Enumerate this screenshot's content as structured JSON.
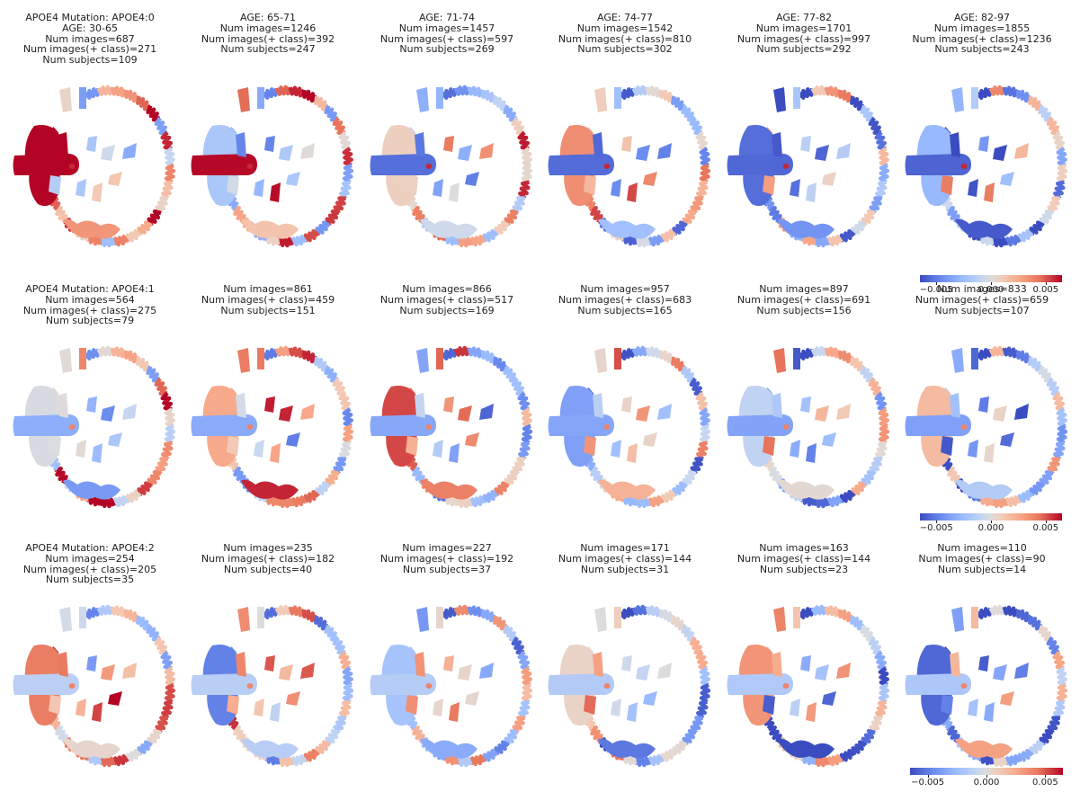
{
  "chart_data": {
    "type": "heatmap",
    "description_scale": "diverging colormap (coolwarm)",
    "colorbar": {
      "ticks": [
        -0.005,
        0.0,
        0.005
      ],
      "tick_labels": [
        "−0.005",
        "0.000",
        "0.005"
      ],
      "range": [
        -0.0065,
        0.0065
      ]
    },
    "rows": [
      {
        "mutation": "APOE4 Mutation: APOE4:0",
        "panels": [
          {
            "lines": [
              "APOE4 Mutation: APOE4:0",
              "AGE: 30-65",
              "Num images=687",
              "Num images(+ class)=271",
              "Num subjects=109"
            ],
            "age_range": "30-65",
            "num_images": 687,
            "num_images_pos": 271,
            "num_subjects": 109
          },
          {
            "lines": [
              "AGE: 65-71",
              "Num images=1246",
              "Num images(+ class)=392",
              "Num subjects=247"
            ],
            "age_range": "65-71",
            "num_images": 1246,
            "num_images_pos": 392,
            "num_subjects": 247
          },
          {
            "lines": [
              "AGE: 71-74",
              "Num images=1457",
              "Num images(+ class)=597",
              "Num subjects=269"
            ],
            "age_range": "71-74",
            "num_images": 1457,
            "num_images_pos": 597,
            "num_subjects": 269
          },
          {
            "lines": [
              "AGE: 74-77",
              "Num images=1542",
              "Num images(+ class)=810",
              "Num subjects=302"
            ],
            "age_range": "74-77",
            "num_images": 1542,
            "num_images_pos": 810,
            "num_subjects": 302
          },
          {
            "lines": [
              "AGE: 77-82",
              "Num images=1701",
              "Num images(+ class)=997",
              "Num subjects=292"
            ],
            "age_range": "77-82",
            "num_images": 1701,
            "num_images_pos": 997,
            "num_subjects": 292
          },
          {
            "lines": [
              "AGE: 82-97",
              "Num images=1855",
              "Num images(+ class)=1236",
              "Num subjects=243"
            ],
            "age_range": "82-97",
            "num_images": 1855,
            "num_images_pos": 1236,
            "num_subjects": 243
          }
        ]
      },
      {
        "mutation": "APOE4 Mutation: APOE4:1",
        "panels": [
          {
            "lines": [
              "APOE4 Mutation: APOE4:1",
              "Num images=564",
              "Num images(+ class)=275",
              "Num subjects=79"
            ],
            "num_images": 564,
            "num_images_pos": 275,
            "num_subjects": 79
          },
          {
            "lines": [
              "Num images=861",
              "Num images(+ class)=459",
              "Num subjects=151"
            ],
            "num_images": 861,
            "num_images_pos": 459,
            "num_subjects": 151
          },
          {
            "lines": [
              "Num images=866",
              "Num images(+ class)=517",
              "Num subjects=169"
            ],
            "num_images": 866,
            "num_images_pos": 517,
            "num_subjects": 169
          },
          {
            "lines": [
              "Num images=957",
              "Num images(+ class)=683",
              "Num subjects=165"
            ],
            "num_images": 957,
            "num_images_pos": 683,
            "num_subjects": 165
          },
          {
            "lines": [
              "Num images=897",
              "Num images(+ class)=691",
              "Num subjects=156"
            ],
            "num_images": 897,
            "num_images_pos": 691,
            "num_subjects": 156
          },
          {
            "lines": [
              "Num images=833",
              "Num images(+ class)=659",
              "Num subjects=107"
            ],
            "num_images": 833,
            "num_images_pos": 659,
            "num_subjects": 107
          }
        ]
      },
      {
        "mutation": "APOE4 Mutation: APOE4:2",
        "panels": [
          {
            "lines": [
              "APOE4 Mutation: APOE4:2",
              "Num images=254",
              "Num images(+ class)=205",
              "Num subjects=35"
            ],
            "num_images": 254,
            "num_images_pos": 205,
            "num_subjects": 35
          },
          {
            "lines": [
              "Num images=235",
              "Num images(+ class)=182",
              "Num subjects=40"
            ],
            "num_images": 235,
            "num_images_pos": 182,
            "num_subjects": 40
          },
          {
            "lines": [
              "Num images=227",
              "Num images(+ class)=192",
              "Num subjects=37"
            ],
            "num_images": 227,
            "num_images_pos": 192,
            "num_subjects": 37
          },
          {
            "lines": [
              "Num images=171",
              "Num images(+ class)=144",
              "Num subjects=31"
            ],
            "num_images": 171,
            "num_images_pos": 144,
            "num_subjects": 31
          },
          {
            "lines": [
              "Num images=163",
              "Num images(+ class)=144",
              "Num subjects=23"
            ],
            "num_images": 163,
            "num_images_pos": 144,
            "num_subjects": 23
          },
          {
            "lines": [
              "Num images=110",
              "Num images(+ class)=90",
              "Num subjects=14"
            ],
            "num_images": 110,
            "num_images_pos": 90,
            "num_subjects": 14
          }
        ]
      }
    ]
  }
}
